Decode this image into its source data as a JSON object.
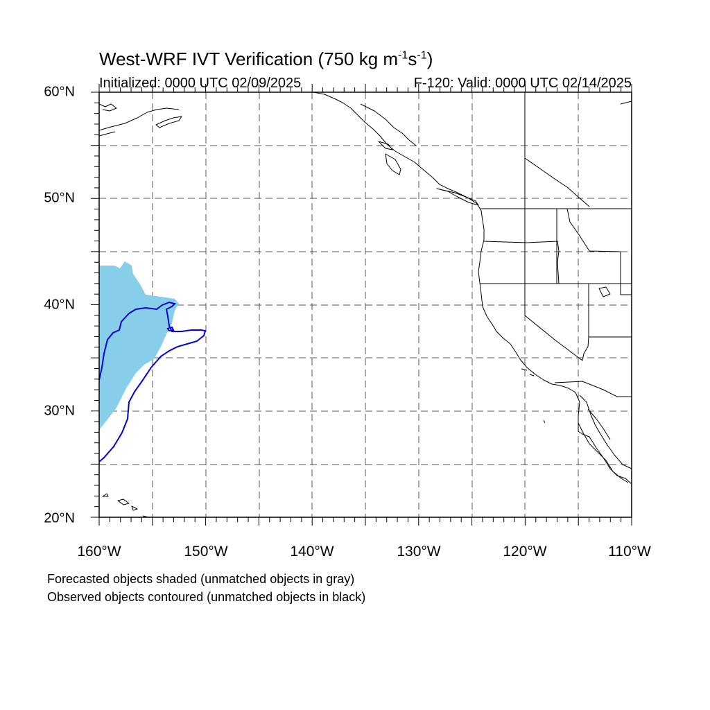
{
  "title": {
    "main": "West-WRF IVT Verification (750 kg m",
    "exp1": "-1",
    "mid": "s",
    "exp2": "-1",
    "close": ")"
  },
  "subtitle_left": "Initialized: 0000 UTC 02/09/2025",
  "subtitle_right": "F-120: Valid: 0000 UTC 02/14/2025",
  "lat_labels": [
    "60°N",
    "50°N",
    "40°N",
    "30°N",
    "20°N"
  ],
  "lon_labels": [
    "160°W",
    "150°W",
    "140°W",
    "130°W",
    "120°W",
    "110°W"
  ],
  "legend": {
    "line1": "Forecasted objects shaded (unmatched objects in gray)",
    "line2": "Observed objects contoured (unmatched objects in black)"
  },
  "map": {
    "lat_range": [
      20,
      60
    ],
    "lon_range": [
      -160,
      -110
    ],
    "grid_spacing_deg": 5,
    "grid_style": "dashed",
    "colors": {
      "forecast_fill": "#87ceeb",
      "observed_contour": "#0000dd",
      "coastline": "#000000",
      "grid": "#555555"
    }
  }
}
